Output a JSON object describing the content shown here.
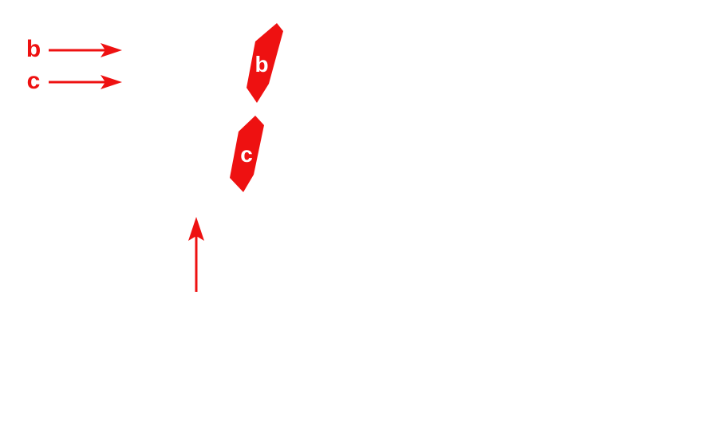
{
  "colors": {
    "accent": "#ee1111",
    "shape_text": "#ffffff",
    "background": "#ffffff"
  },
  "legend": [
    {
      "label": "b",
      "icon": "arrow-right-icon"
    },
    {
      "label": "c",
      "icon": "arrow-right-icon"
    }
  ],
  "shapes": [
    {
      "label": "b"
    },
    {
      "label": "c"
    }
  ],
  "pointer": {
    "icon": "arrow-up-icon"
  }
}
